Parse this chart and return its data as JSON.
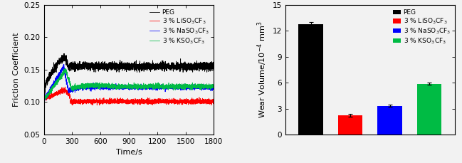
{
  "line_colors": {
    "PEG": "#000000",
    "LiSO3CF3": "#ff0000",
    "NaSO3CF3": "#0000ff",
    "KSO3CF3": "#00bb44"
  },
  "line_labels": {
    "PEG": "PEG",
    "LiSO3CF3": "3 % LiSO$_3$CF$_3$",
    "NaSO3CF3": "3 % NaSO$_3$CF$_3$",
    "KSO3CF3": "3 % KSO$_3$CF$_3$"
  },
  "left_xlim": [
    0,
    1800
  ],
  "left_ylim": [
    0.05,
    0.25
  ],
  "left_yticks": [
    0.05,
    0.1,
    0.15,
    0.2,
    0.25
  ],
  "left_xticks": [
    0,
    300,
    600,
    900,
    1200,
    1500,
    1800
  ],
  "left_xlabel": "Time/s",
  "left_ylabel": "Friction Coefficient",
  "bar_values": [
    12.8,
    2.2,
    3.3,
    5.85
  ],
  "bar_errors": [
    0.18,
    0.18,
    0.12,
    0.12
  ],
  "bar_colors": [
    "#000000",
    "#ff0000",
    "#0000ff",
    "#00bb44"
  ],
  "bar_labels": [
    "PEG",
    "3 % LiSO$_3$CF$_3$",
    "3 % NaSO$_3$CF$_3$",
    "3 % KSO$_3$CF$_3$"
  ],
  "right_ylim": [
    0,
    15
  ],
  "right_yticks": [
    0,
    3,
    6,
    9,
    12,
    15
  ],
  "right_ylabel": "Wear Volume/10$^{-4}$ mm$^3$"
}
